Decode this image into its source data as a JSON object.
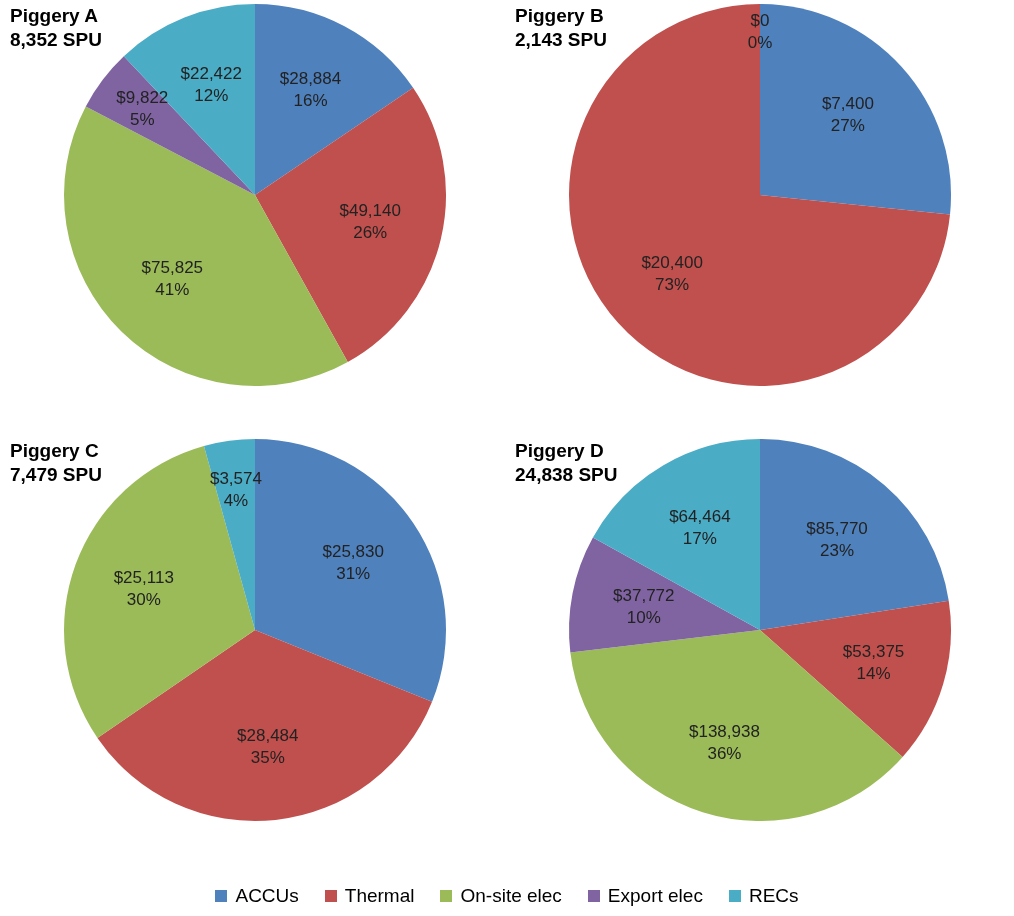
{
  "chart_data": [
    {
      "type": "pie",
      "title": "Piggery A",
      "subtitle": "8,352 SPU",
      "categories": [
        "ACCUs",
        "Thermal",
        "On-site elec",
        "Export elec",
        "RECs"
      ],
      "values": [
        28884,
        49140,
        75825,
        9822,
        22422
      ],
      "colors": [
        "#4f81bd",
        "#c0504d",
        "#9bbb59",
        "#8064a2",
        "#4bacc6"
      ],
      "value_labels": [
        "$28,884\n16%",
        "$49,140\n26%",
        "$75,825\n41%",
        "$9,822\n5%",
        "$22,422\n12%"
      ],
      "legend": "bottom"
    },
    {
      "type": "pie",
      "title": "Piggery B",
      "subtitle": "2,143 SPU",
      "categories": [
        null,
        null,
        null
      ],
      "values": [
        7400,
        20400,
        0
      ],
      "colors": [
        "#4f81bd",
        "#c0504d",
        "#9bbb59"
      ],
      "value_labels": [
        "$7,400\n27%",
        "$20,400\n73%",
        "$0\n0%"
      ]
    },
    {
      "type": "pie",
      "title": "Piggery C",
      "subtitle": "7,479 SPU",
      "categories": [
        null,
        null,
        null,
        null
      ],
      "values": [
        25830,
        28484,
        25113,
        3574
      ],
      "colors": [
        "#4f81bd",
        "#c0504d",
        "#9bbb59",
        "#4bacc6"
      ],
      "value_labels": [
        "$25,830\n31%",
        "$28,484\n35%",
        "$25,113\n30%",
        "$3,574\n4%"
      ]
    },
    {
      "type": "pie",
      "title": "Piggery D",
      "subtitle": "24,838 SPU",
      "categories": [
        null,
        null,
        null,
        null,
        null
      ],
      "values": [
        85770,
        53375,
        138938,
        37772,
        64464
      ],
      "colors": [
        "#4f81bd",
        "#c0504d",
        "#9bbb59",
        "#8064a2",
        "#4bacc6"
      ],
      "value_labels": [
        "$85,770\n23%",
        "$53,375\n14%",
        "$138,938\n36%",
        "$37,772\n10%",
        "$64,464\n17%"
      ]
    }
  ]
}
